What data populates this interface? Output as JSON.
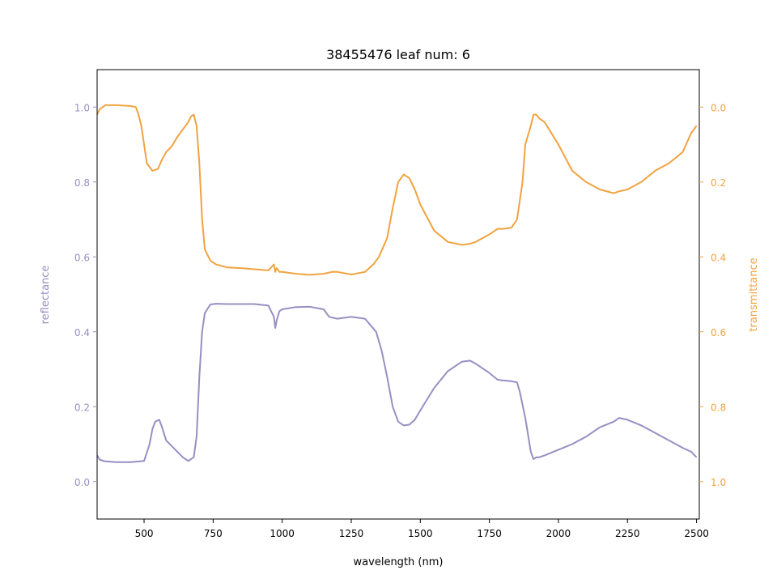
{
  "chart_data": {
    "type": "line",
    "title": "38455476 leaf num: 6",
    "xlabel": "wavelength (nm)",
    "ylabel_left": "reflectance",
    "ylabel_right": "transmittance",
    "xlim": [
      330,
      2510
    ],
    "ylim_left": [
      -0.1,
      1.1
    ],
    "ylim_right_inverted": [
      1.1,
      -0.1
    ],
    "x_ticks": [
      500,
      750,
      1000,
      1250,
      1500,
      1750,
      2000,
      2250,
      2500
    ],
    "x_tick_labels": [
      "500",
      "750",
      "1000",
      "1250",
      "1500",
      "1750",
      "2000",
      "2250",
      "2500"
    ],
    "y_left_ticks": [
      0.0,
      0.2,
      0.4,
      0.6,
      0.8,
      1.0
    ],
    "y_left_tick_labels": [
      "0.0",
      "0.2",
      "0.4",
      "0.6",
      "0.8",
      "1.0"
    ],
    "y_right_ticks": [
      0.0,
      0.2,
      0.4,
      0.6,
      0.8,
      1.0
    ],
    "y_right_tick_labels": [
      "0.0",
      "0.2",
      "0.4",
      "0.6",
      "0.8",
      "1.0"
    ],
    "grid": false,
    "colors": {
      "reflectance": "#998ec3",
      "transmittance": "#f1a340"
    },
    "series": [
      {
        "axis": "left",
        "x": [
          330,
          340,
          360,
          400,
          450,
          500,
          520,
          530,
          540,
          555,
          565,
          580,
          600,
          620,
          640,
          660,
          680,
          690,
          700,
          710,
          720,
          740,
          760,
          800,
          850,
          900,
          950,
          970,
          975,
          980,
          990,
          1000,
          1050,
          1100,
          1150,
          1170,
          1200,
          1250,
          1300,
          1340,
          1360,
          1380,
          1400,
          1420,
          1440,
          1460,
          1480,
          1500,
          1550,
          1600,
          1650,
          1680,
          1700,
          1750,
          1780,
          1800,
          1830,
          1850,
          1860,
          1880,
          1900,
          1910,
          1920,
          1930,
          1950,
          2000,
          2050,
          2100,
          2150,
          2200,
          2220,
          2250,
          2300,
          2350,
          2400,
          2450,
          2480,
          2500
        ],
        "y": [
          0.07,
          0.058,
          0.054,
          0.052,
          0.052,
          0.055,
          0.1,
          0.14,
          0.16,
          0.165,
          0.145,
          0.11,
          0.095,
          0.08,
          0.065,
          0.055,
          0.065,
          0.12,
          0.28,
          0.4,
          0.45,
          0.473,
          0.475,
          0.474,
          0.474,
          0.474,
          0.47,
          0.44,
          0.41,
          0.43,
          0.455,
          0.46,
          0.466,
          0.467,
          0.46,
          0.44,
          0.435,
          0.44,
          0.435,
          0.4,
          0.35,
          0.28,
          0.2,
          0.16,
          0.15,
          0.152,
          0.165,
          0.19,
          0.25,
          0.295,
          0.32,
          0.323,
          0.315,
          0.29,
          0.272,
          0.27,
          0.268,
          0.265,
          0.24,
          0.17,
          0.08,
          0.06,
          0.065,
          0.065,
          0.07,
          0.085,
          0.1,
          0.12,
          0.145,
          0.16,
          0.17,
          0.165,
          0.15,
          0.13,
          0.11,
          0.09,
          0.08,
          0.065
        ]
      },
      {
        "axis": "right",
        "x": [
          330,
          340,
          360,
          400,
          450,
          470,
          480,
          490,
          500,
          510,
          530,
          550,
          565,
          580,
          600,
          620,
          640,
          660,
          670,
          680,
          690,
          700,
          710,
          720,
          740,
          760,
          800,
          850,
          900,
          950,
          970,
          975,
          980,
          990,
          1000,
          1050,
          1100,
          1150,
          1180,
          1200,
          1250,
          1300,
          1330,
          1350,
          1380,
          1400,
          1420,
          1440,
          1460,
          1480,
          1500,
          1550,
          1600,
          1650,
          1680,
          1700,
          1750,
          1780,
          1800,
          1830,
          1850,
          1870,
          1880,
          1900,
          1910,
          1920,
          1930,
          1950,
          2000,
          2050,
          2100,
          2150,
          2200,
          2220,
          2250,
          2300,
          2350,
          2400,
          2450,
          2480,
          2500
        ],
        "y": [
          0.02,
          0.005,
          -0.005,
          -0.005,
          -0.003,
          0.0,
          0.02,
          0.05,
          0.1,
          0.15,
          0.17,
          0.165,
          0.14,
          0.12,
          0.105,
          0.08,
          0.06,
          0.04,
          0.025,
          0.02,
          0.05,
          0.15,
          0.3,
          0.38,
          0.41,
          0.42,
          0.428,
          0.43,
          0.433,
          0.436,
          0.42,
          0.44,
          0.43,
          0.44,
          0.44,
          0.445,
          0.448,
          0.445,
          0.44,
          0.44,
          0.447,
          0.44,
          0.42,
          0.4,
          0.35,
          0.27,
          0.2,
          0.18,
          0.19,
          0.22,
          0.26,
          0.33,
          0.36,
          0.368,
          0.365,
          0.36,
          0.34,
          0.325,
          0.325,
          0.322,
          0.3,
          0.2,
          0.1,
          0.05,
          0.02,
          0.02,
          0.03,
          0.04,
          0.1,
          0.17,
          0.2,
          0.22,
          0.23,
          0.225,
          0.22,
          0.2,
          0.17,
          0.15,
          0.12,
          0.07,
          0.05
        ]
      }
    ]
  }
}
